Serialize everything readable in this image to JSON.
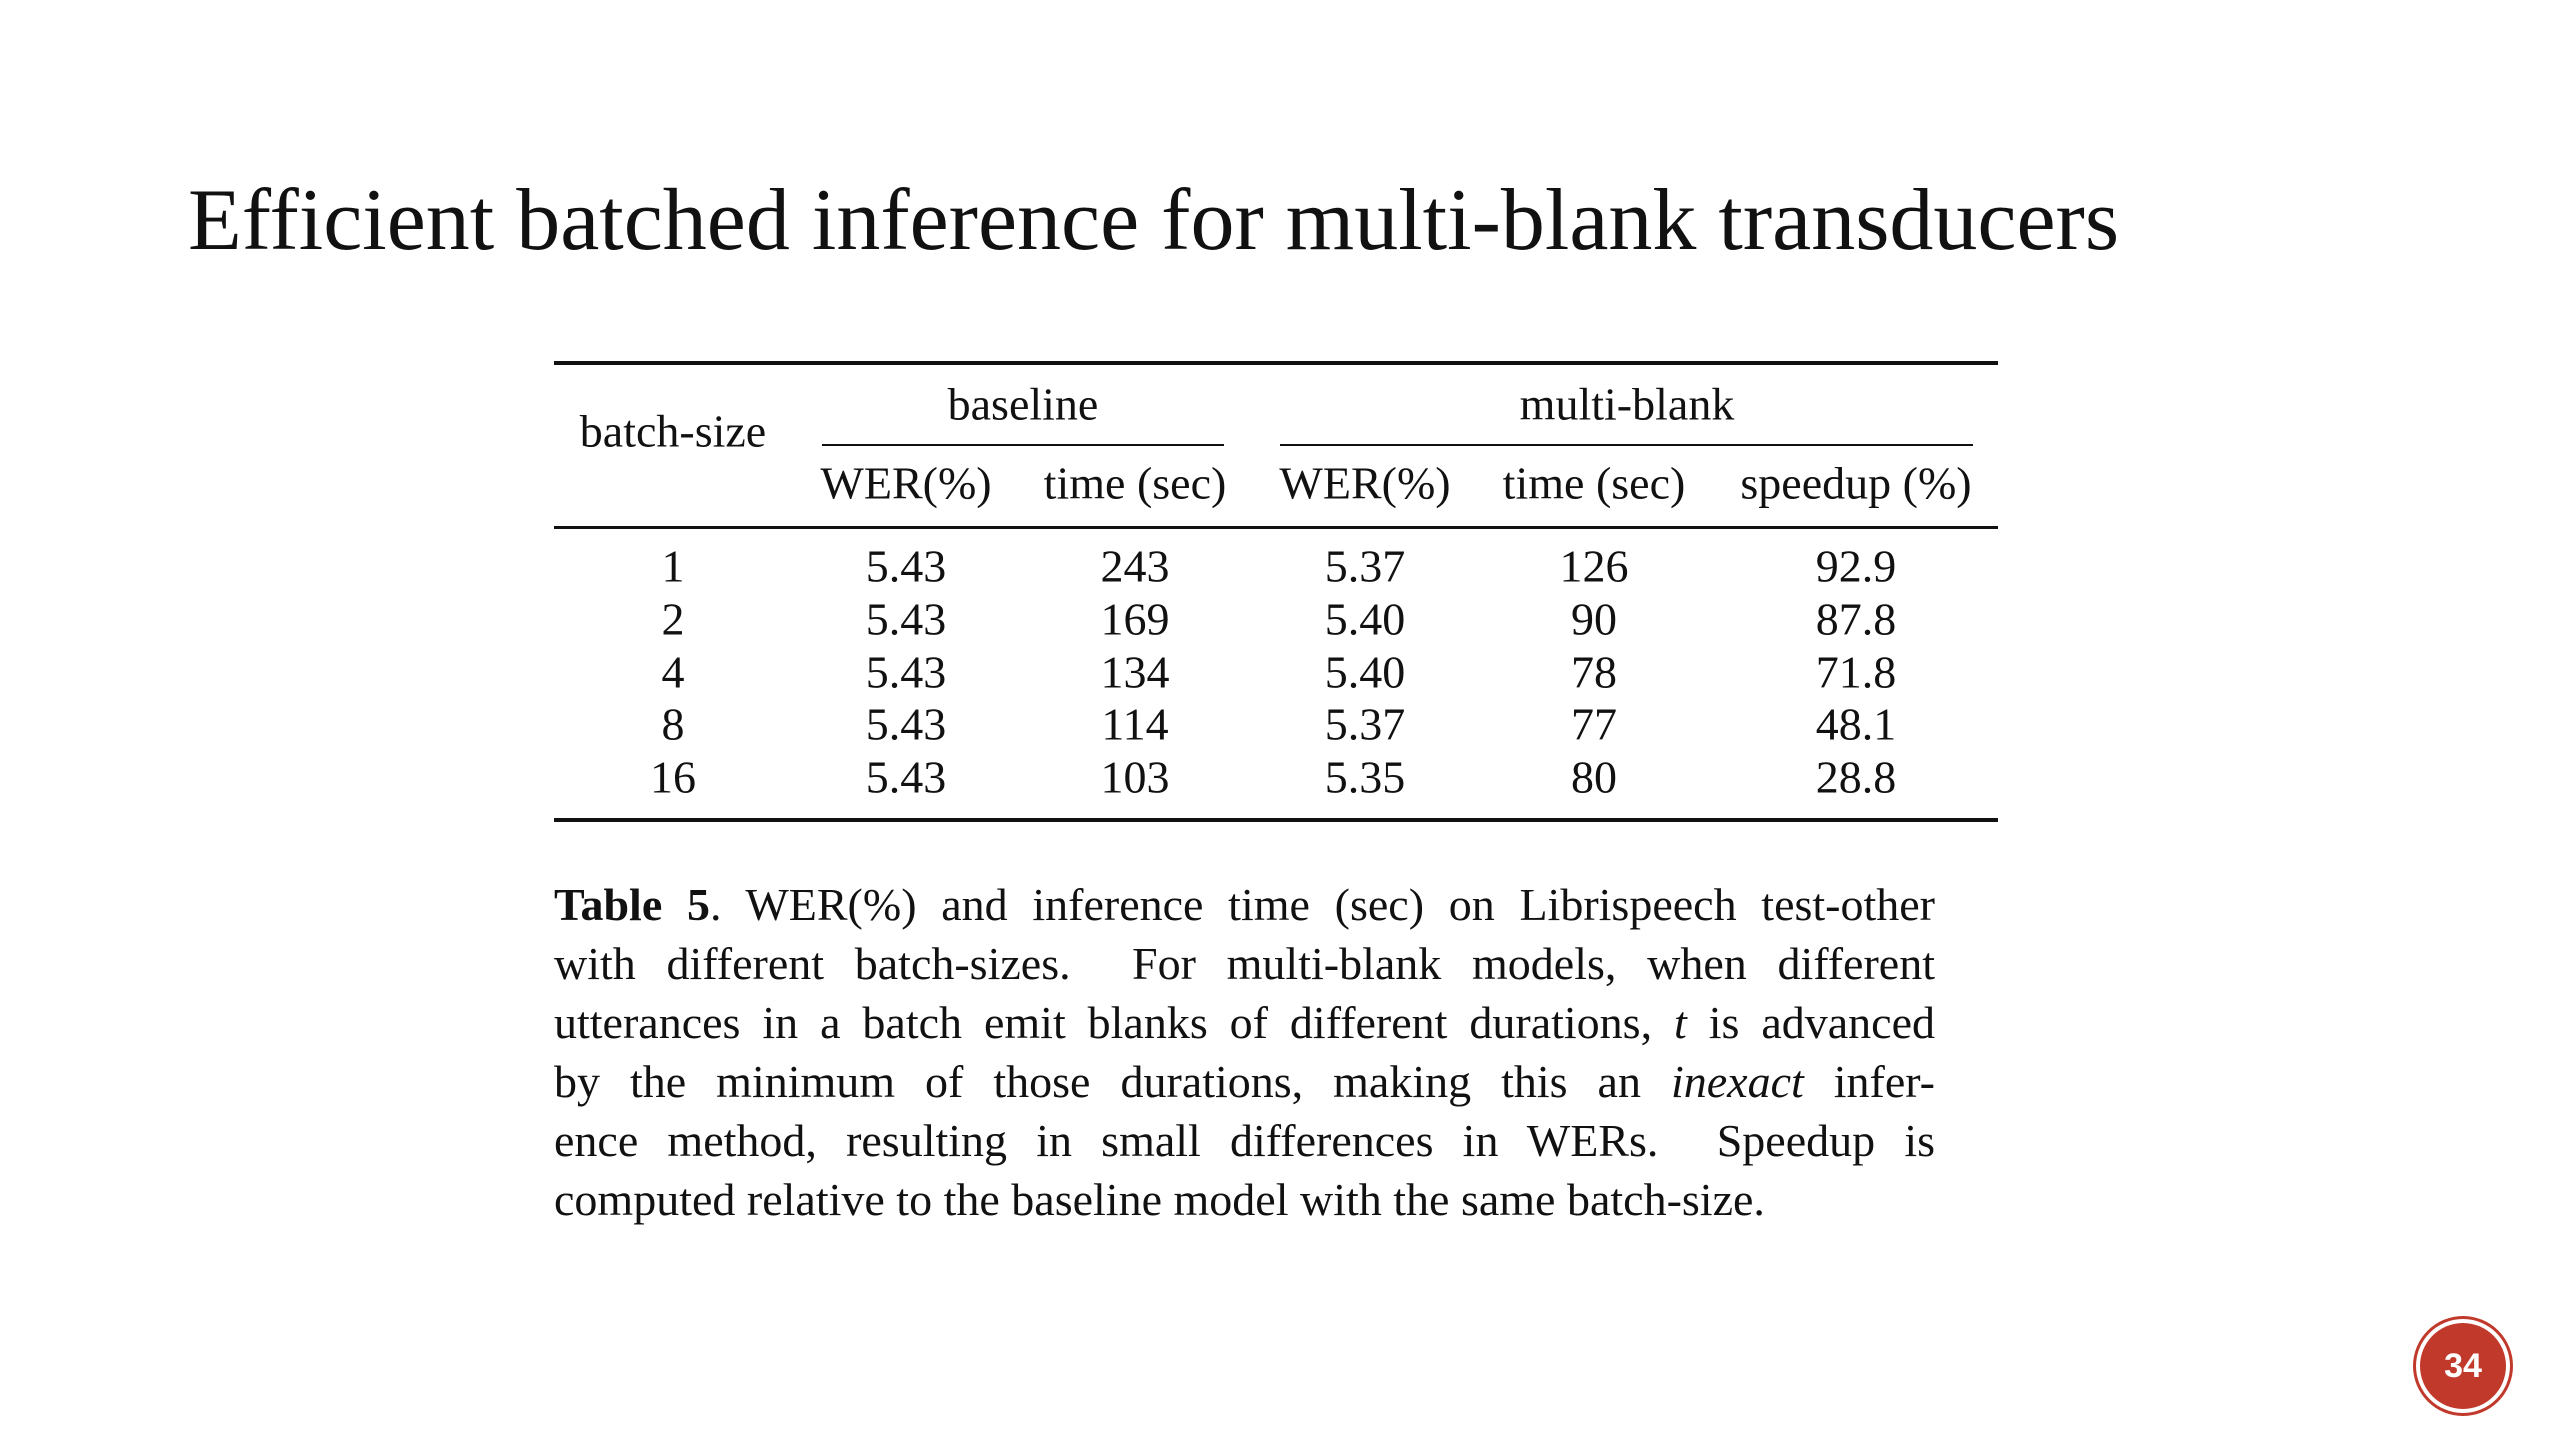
{
  "title": "Efficient batched inference for multi-blank transducers",
  "table": {
    "row_header": "batch-size",
    "groups": [
      "baseline",
      "multi-blank"
    ],
    "columns": [
      "WER(%)",
      "time (sec)",
      "WER(%)",
      "time (sec)",
      "speedup (%)"
    ],
    "rows": [
      [
        "1",
        "5.43",
        "243",
        "5.37",
        "126",
        "92.9"
      ],
      [
        "2",
        "5.43",
        "169",
        "5.40",
        "90",
        "87.8"
      ],
      [
        "4",
        "5.43",
        "134",
        "5.40",
        "78",
        "71.8"
      ],
      [
        "8",
        "5.43",
        "114",
        "5.37",
        "77",
        "48.1"
      ],
      [
        "16",
        "5.43",
        "103",
        "5.35",
        "80",
        "28.8"
      ]
    ]
  },
  "caption": {
    "lines": [
      [
        {
          "text": "Table 5",
          "style": "bold"
        },
        {
          "text": ". WER(%) and inference time (sec) on Librispeech test-other",
          "style": "normal"
        }
      ],
      [
        {
          "text": "with different batch-sizes.  For multi-blank models, when different",
          "style": "normal"
        }
      ],
      [
        {
          "text": "utterances in a batch emit blanks of different durations, ",
          "style": "normal"
        },
        {
          "text": "t",
          "style": "italic"
        },
        {
          "text": " is advanced",
          "style": "normal"
        }
      ],
      [
        {
          "text": "by the minimum of those durations, making this an ",
          "style": "normal"
        },
        {
          "text": "inexact",
          "style": "italic"
        },
        {
          "text": " infer-",
          "style": "normal"
        }
      ],
      [
        {
          "text": "ence method, resulting in small differences in WERs.  Speedup is",
          "style": "normal"
        }
      ],
      [
        {
          "text": "computed relative to the baseline model with the same batch-size.",
          "style": "normal"
        }
      ]
    ]
  },
  "page_number": "34"
}
